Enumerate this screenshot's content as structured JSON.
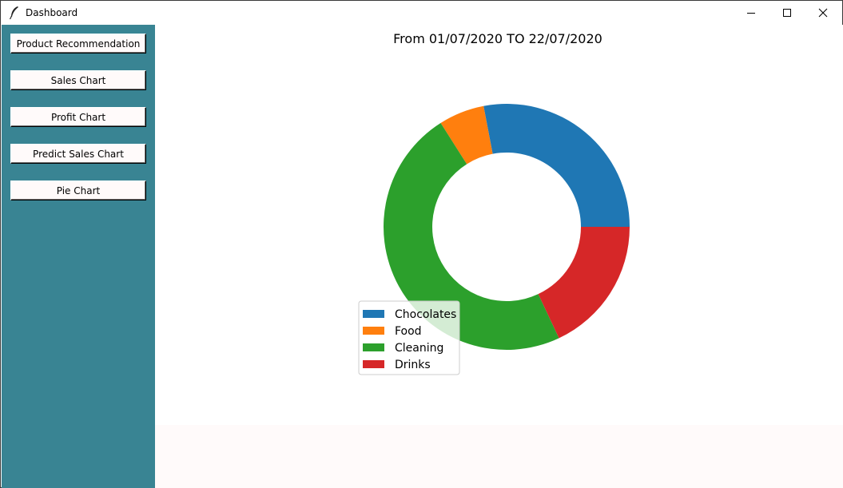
{
  "window": {
    "title": "Dashboard"
  },
  "titlebar_controls": [
    "minimize-icon",
    "maximize-icon",
    "close-icon"
  ],
  "sidebar": {
    "background": "#398493",
    "buttons": [
      {
        "label": "Product Recommendation"
      },
      {
        "label": "Sales Chart"
      },
      {
        "label": "Profit Chart"
      },
      {
        "label": "Predict Sales Chart"
      },
      {
        "label": "Pie Chart"
      }
    ]
  },
  "chart_data": {
    "type": "pie",
    "style": "donut",
    "title": "From 01/07/2020 TO 22/07/2020",
    "categories": [
      "Chocolates",
      "Food",
      "Cleaning",
      "Drinks"
    ],
    "values": [
      28,
      6,
      48,
      18
    ],
    "colors": [
      "#1f77b4",
      "#ff7f0e",
      "#2ca02c",
      "#d62728"
    ],
    "legend_position": "lower-left"
  }
}
